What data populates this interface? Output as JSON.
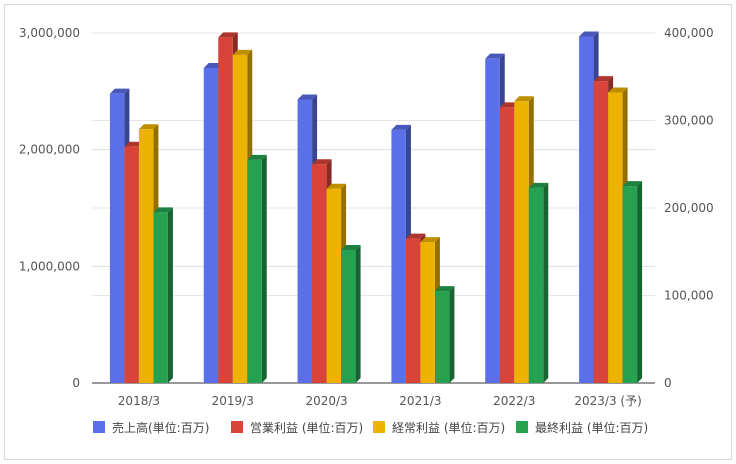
{
  "chart_data": {
    "type": "bar",
    "categories": [
      "2018/3",
      "2019/3",
      "2020/3",
      "2021/3",
      "2022/3",
      "2023/3 (予)"
    ],
    "series": [
      {
        "name": "売上高(単位:百万)",
        "axis": "left",
        "color": "#5b6fe8",
        "values": [
          2480000,
          2700000,
          2430000,
          2170000,
          2780000,
          2970000
        ]
      },
      {
        "name": "営業利益 (単位:百万)",
        "axis": "right",
        "color": "#d8433a",
        "values": [
          270000,
          395000,
          250000,
          165000,
          315000,
          345000
        ]
      },
      {
        "name": "経常利益 (単位:百万)",
        "axis": "right",
        "color": "#eeb300",
        "values": [
          290000,
          375000,
          222000,
          161000,
          322000,
          332000
        ]
      },
      {
        "name": "最終利益 (単位:百万)",
        "axis": "right",
        "color": "#25a150",
        "values": [
          195000,
          255000,
          152000,
          105000,
          223000,
          225000
        ]
      }
    ],
    "left_axis": {
      "ylim": [
        0,
        3000000
      ],
      "ticks": [
        "0",
        "1,000,000",
        "2,000,000",
        "3,000,000"
      ]
    },
    "right_axis": {
      "ylim": [
        0,
        400000
      ],
      "ticks": [
        "0",
        "100,000",
        "200,000",
        "300,000",
        "400,000"
      ]
    },
    "grid": true,
    "legend_position": "bottom"
  }
}
